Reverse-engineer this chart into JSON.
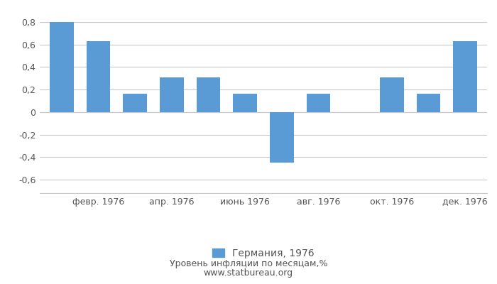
{
  "xtick_labels": [
    "февр. 1976",
    "апр. 1976",
    "июнь 1976",
    "авг. 1976",
    "окт. 1976",
    "дек. 1976"
  ],
  "xtick_positions": [
    1,
    3,
    5,
    7,
    9,
    11
  ],
  "values": [
    0.8,
    0.63,
    0.16,
    0.31,
    0.31,
    0.16,
    -0.45,
    0.16,
    0.0,
    0.31,
    0.16,
    0.63
  ],
  "bar_color": "#5B9BD5",
  "ylim": [
    -0.72,
    0.92
  ],
  "yticks": [
    -0.6,
    -0.4,
    -0.2,
    0.0,
    0.2,
    0.4,
    0.6,
    0.8
  ],
  "ytick_labels": [
    "-0,6",
    "-0,4",
    "-0,2",
    "0",
    "0,2",
    "0,4",
    "0,6",
    "0,8"
  ],
  "legend_label": "Германия, 1976",
  "bottom_label1": "Уровень инфляции по месяцам,%",
  "bottom_label2": "www.statbureau.org",
  "background_color": "#ffffff",
  "grid_color": "#c8c8c8",
  "text_color": "#555555",
  "tick_label_color": "#555555"
}
